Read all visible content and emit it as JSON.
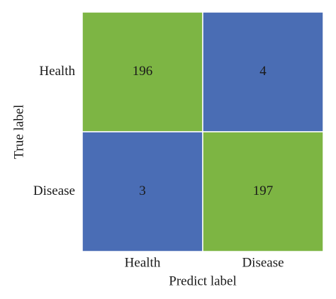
{
  "chart_data": {
    "type": "heatmap",
    "x_label": "Predict label",
    "y_label": "True label",
    "x_categories": [
      "Health",
      "Disease"
    ],
    "y_categories": [
      "Health",
      "Disease"
    ],
    "values": [
      [
        196,
        4
      ],
      [
        3,
        197
      ]
    ],
    "colormap": [
      "#4a6db5",
      "#7db543"
    ]
  }
}
